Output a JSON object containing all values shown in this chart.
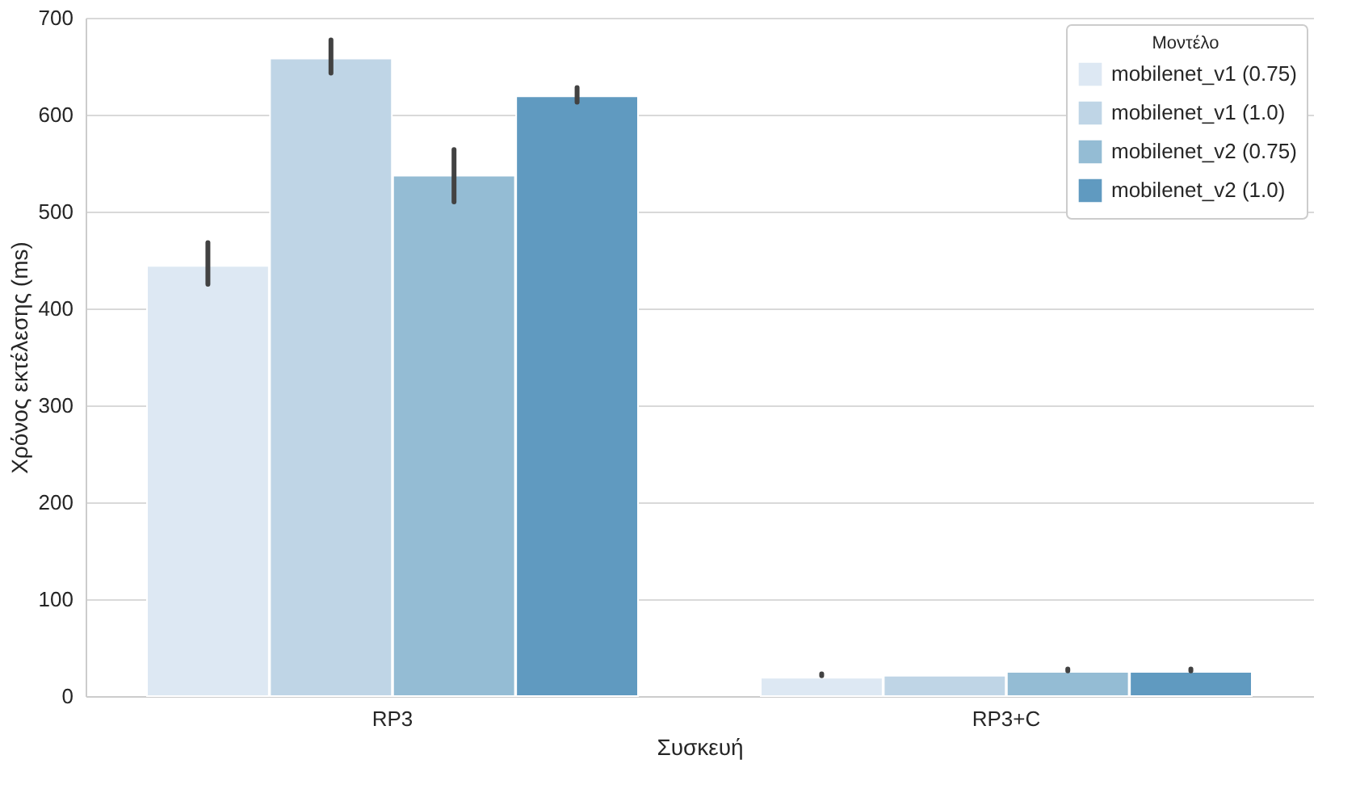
{
  "chart_data": {
    "type": "bar",
    "xlabel": "Συσκευή",
    "ylabel": "Χρόνος εκτέλεσης (ms)",
    "legend_title": "Μοντέλο",
    "categories": [
      "RP3",
      "RP3+C"
    ],
    "series": [
      {
        "name": "mobilenet_v1 (0.75)",
        "color": "#dde8f3",
        "values": [
          444,
          19
        ],
        "errors": [
          [
            425,
            468
          ],
          [
            21,
            23
          ]
        ]
      },
      {
        "name": "mobilenet_v1 (1.0)",
        "color": "#bfd5e6",
        "values": [
          658,
          21
        ],
        "errors": [
          [
            643,
            677
          ],
          null
        ]
      },
      {
        "name": "mobilenet_v2 (0.75)",
        "color": "#94bcd4",
        "values": [
          537,
          25
        ],
        "errors": [
          [
            510,
            564
          ],
          [
            26,
            28
          ]
        ]
      },
      {
        "name": "mobilenet_v2 (1.0)",
        "color": "#609ac0",
        "values": [
          619,
          25
        ],
        "errors": [
          [
            613,
            628
          ],
          [
            26,
            28
          ]
        ]
      }
    ],
    "ylim": [
      0,
      700
    ],
    "yticks": [
      0,
      100,
      200,
      300,
      400,
      500,
      600,
      700
    ],
    "grid": "y",
    "legend": "top right"
  }
}
